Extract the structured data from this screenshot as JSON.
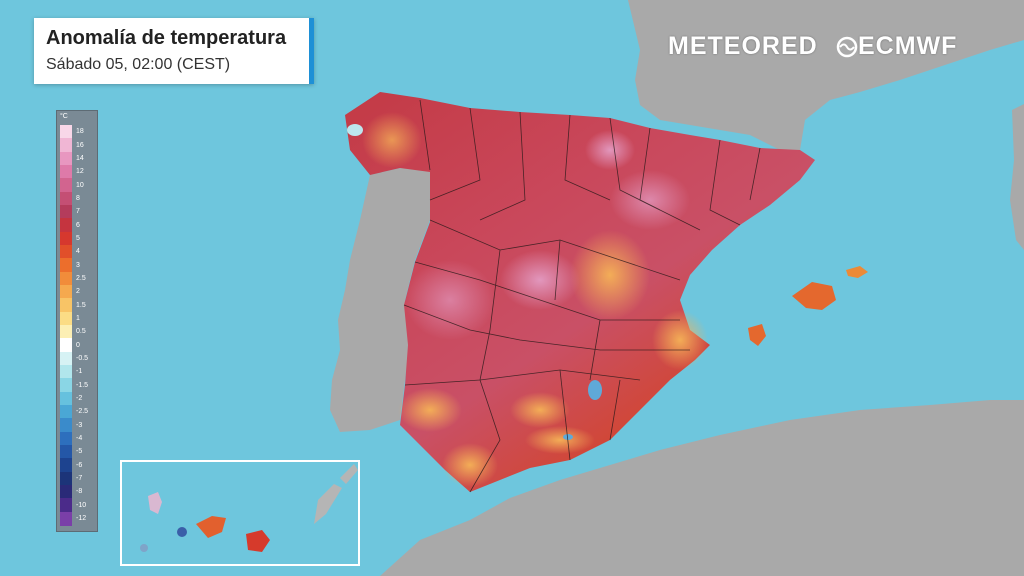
{
  "title": {
    "main": "Anomalía de temperatura",
    "sub": "Sábado 05, 02:00 (CEST)"
  },
  "brands": {
    "meteored": "METEORED",
    "ecmwf": "ECMWF"
  },
  "legend": {
    "unit": "°C",
    "labels": [
      "18",
      "16",
      "14",
      "12",
      "10",
      "8",
      "7",
      "6",
      "5",
      "4",
      "3",
      "2.5",
      "2",
      "1.5",
      "1",
      "0.5",
      "0",
      "-0.5",
      "-1",
      "-1.5",
      "-2",
      "-2.5",
      "-3",
      "-4",
      "-5",
      "-6",
      "-7",
      "-8",
      "-10",
      "-12"
    ],
    "colors": [
      "#f8d7e8",
      "#f0b6d4",
      "#e897c0",
      "#de7aa9",
      "#d2648f",
      "#c44f74",
      "#b43c5c",
      "#c5343f",
      "#d6382e",
      "#e14f2a",
      "#ec6e2c",
      "#f18c3a",
      "#f5a94e",
      "#f8c466",
      "#fbdc85",
      "#fcefb4",
      "#ffffff",
      "#d6f2f4",
      "#b1e6ec",
      "#8ad6e5",
      "#66c1de",
      "#4aa7d5",
      "#3a8bcb",
      "#2d6fbd",
      "#2457a7",
      "#1d438f",
      "#1c3479",
      "#2a2a78",
      "#4b2b8a",
      "#7a3fa8"
    ]
  },
  "colors": {
    "sea": "#6ec6dd",
    "land": "#a9a9a9",
    "accent": "#1e90d6"
  }
}
